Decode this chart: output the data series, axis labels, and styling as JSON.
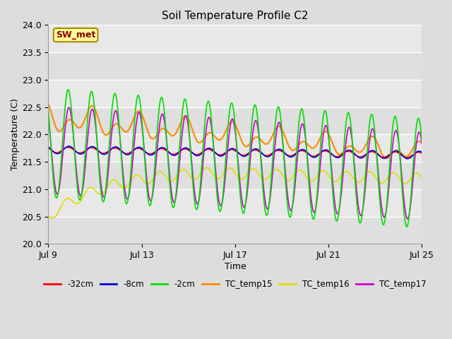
{
  "title": "Soil Temperature Profile C2",
  "xlabel": "Time",
  "ylabel": "Temperature (C)",
  "ylim": [
    20.0,
    24.0
  ],
  "xlim_days": [
    0,
    16
  ],
  "x_ticks_days": [
    0,
    4,
    8,
    12,
    16
  ],
  "x_tick_labels": [
    "Jul 9",
    "Jul 13",
    "Jul 17",
    "Jul 21",
    "Jul 25"
  ],
  "y_ticks": [
    20.0,
    20.5,
    21.0,
    21.5,
    22.0,
    22.5,
    23.0,
    23.5,
    24.0
  ],
  "series_colors": {
    "-32cm": "#ff0000",
    "-8cm": "#0000dd",
    "-2cm": "#00dd00",
    "TC_temp15": "#ff8800",
    "TC_temp16": "#dddd00",
    "TC_temp17": "#cc00cc"
  },
  "annotation_text": "SW_met",
  "annotation_bg": "#ffff99",
  "annotation_border": "#aa8800",
  "annotation_text_color": "#880000",
  "bg_color": "#dddddd",
  "plot_bg": "#e8e8e8",
  "n_points": 1600
}
